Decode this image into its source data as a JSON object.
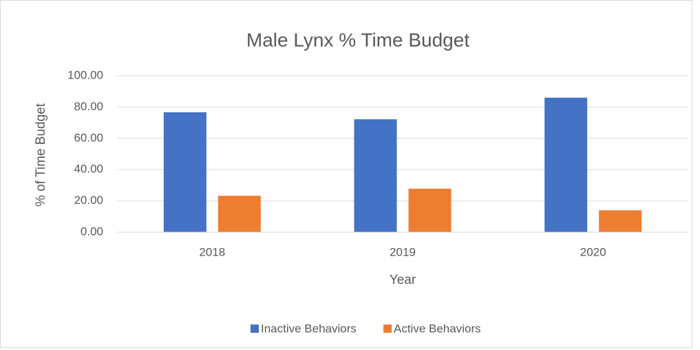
{
  "chart_data": {
    "type": "bar",
    "title": "Male Lynx % Time Budget",
    "x_label": "Year",
    "y_label": "% of Time Budget",
    "categories": [
      "2018",
      "2019",
      "2020"
    ],
    "series": [
      {
        "name": "Inactive Behaviors",
        "color": "#4472c4",
        "values": [
          76.7,
          72.2,
          86.0
        ]
      },
      {
        "name": "Active Behaviors",
        "color": "#ed7d31",
        "values": [
          23.3,
          27.8,
          14.0
        ]
      }
    ],
    "ylim": [
      0,
      100
    ],
    "yticks": [
      {
        "value": 0,
        "label": "0.00"
      },
      {
        "value": 20,
        "label": "20.00"
      },
      {
        "value": 40,
        "label": "40.00"
      },
      {
        "value": 60,
        "label": "60.00"
      },
      {
        "value": 80,
        "label": "80.00"
      },
      {
        "value": 100,
        "label": "100.00"
      }
    ],
    "grid": true,
    "legend": "bottom"
  }
}
